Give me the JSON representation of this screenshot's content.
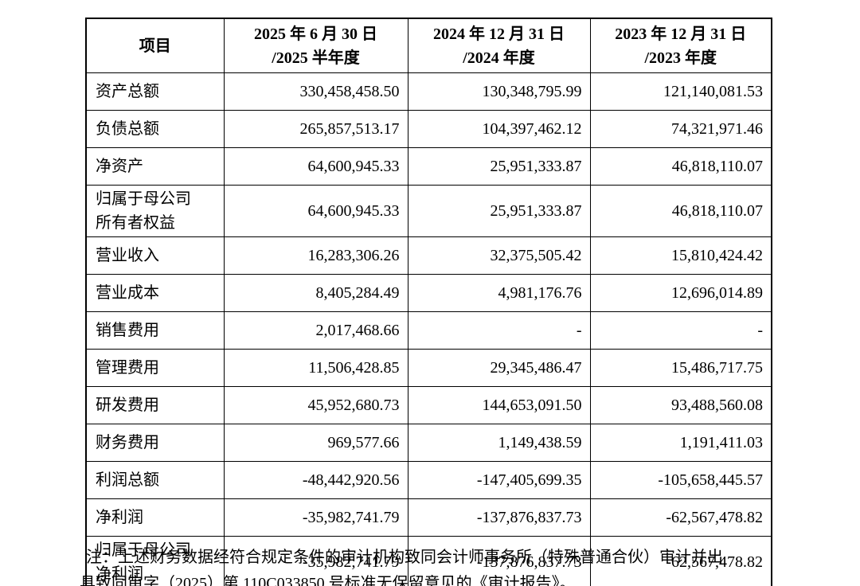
{
  "table": {
    "columns": [
      "项目",
      "2025 年 6 月 30 日\n/2025 半年度",
      "2024 年 12 月 31 日\n/2024 年度",
      "2023 年 12 月 31 日\n/2023 年度"
    ],
    "rows": [
      {
        "label": "资产总额",
        "values": [
          "330,458,458.50",
          "130,348,795.99",
          "121,140,081.53"
        ]
      },
      {
        "label": "负债总额",
        "values": [
          "265,857,513.17",
          "104,397,462.12",
          "74,321,971.46"
        ]
      },
      {
        "label": "净资产",
        "values": [
          "64,600,945.33",
          "25,951,333.87",
          "46,818,110.07"
        ]
      },
      {
        "label": "归属于母公司\n所有者权益",
        "values": [
          "64,600,945.33",
          "25,951,333.87",
          "46,818,110.07"
        ]
      },
      {
        "label": "营业收入",
        "values": [
          "16,283,306.26",
          "32,375,505.42",
          "15,810,424.42"
        ]
      },
      {
        "label": "营业成本",
        "values": [
          "8,405,284.49",
          "4,981,176.76",
          "12,696,014.89"
        ]
      },
      {
        "label": "销售费用",
        "values": [
          "2,017,468.66",
          "-",
          "-"
        ]
      },
      {
        "label": "管理费用",
        "values": [
          "11,506,428.85",
          "29,345,486.47",
          "15,486,717.75"
        ]
      },
      {
        "label": "研发费用",
        "values": [
          "45,952,680.73",
          "144,653,091.50",
          "93,488,560.08"
        ]
      },
      {
        "label": "财务费用",
        "values": [
          "969,577.66",
          "1,149,438.59",
          "1,191,411.03"
        ]
      },
      {
        "label": "利润总额",
        "values": [
          "-48,442,920.56",
          "-147,405,699.35",
          "-105,658,445.57"
        ]
      },
      {
        "label": "净利润",
        "values": [
          "-35,982,741.79",
          "-137,876,837.73",
          "-62,567,478.82"
        ]
      },
      {
        "label": "归属于母公司\n净利润",
        "values": [
          "-35,982,741.79",
          "-137,876,837.73",
          "-62,567,478.82"
        ]
      }
    ]
  },
  "note": "注：上述财务数据经符合规定条件的审计机构致同会计师事务所（特殊普通合伙）审计并出\n具致同审字（2025）第 110C033850 号标准无保留意见的《审计报告》。",
  "colors": {
    "border": "#000000",
    "text": "#000000",
    "background": "#ffffff"
  }
}
